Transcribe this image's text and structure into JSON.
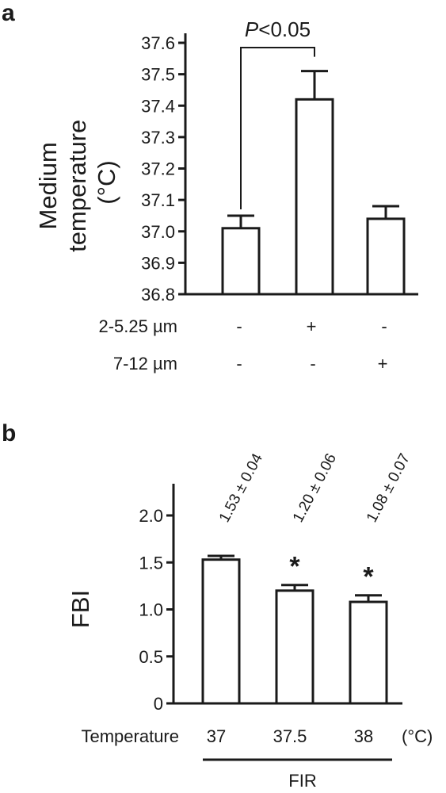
{
  "chart_data": [
    {
      "panel": "a",
      "type": "bar",
      "ylabel_lines": [
        "Medium",
        "temperature",
        "(°C)"
      ],
      "ylim": [
        36.8,
        37.6
      ],
      "yticks": [
        "36.8",
        "36.9",
        "37.0",
        "37.1",
        "37.2",
        "37.3",
        "37.4",
        "37.5",
        "37.6"
      ],
      "ytick_values": [
        36.8,
        36.9,
        37.0,
        37.1,
        37.2,
        37.3,
        37.4,
        37.5,
        37.6
      ],
      "values": [
        37.01,
        37.42,
        37.04
      ],
      "errors": [
        0.04,
        0.09,
        0.04
      ],
      "conditions": [
        {
          "label": "2-5.25 µm",
          "marks": [
            "-",
            "+",
            "-"
          ]
        },
        {
          "label": "7-12 µm",
          "marks": [
            "-",
            "-",
            "+"
          ]
        }
      ],
      "significance": {
        "italic": "P",
        "rest": "<0.05",
        "from_bar": 0,
        "to_bar": 1
      }
    },
    {
      "panel": "b",
      "type": "bar",
      "ylabel": "FBI",
      "ylim": [
        0,
        2.0
      ],
      "yticks": [
        "0",
        "0.5",
        "1.0",
        "1.5",
        "2.0"
      ],
      "ytick_values": [
        0,
        0.5,
        1.0,
        1.5,
        2.0
      ],
      "values": [
        1.53,
        1.2,
        1.08
      ],
      "errors": [
        0.04,
        0.06,
        0.07
      ],
      "value_labels": [
        "1.53 ± 0.04",
        "1.20 ± 0.06",
        "1.08 ± 0.07"
      ],
      "stars": [
        "",
        "*",
        "*"
      ],
      "xlabel": "Temperature",
      "categories": [
        "37",
        "37.5",
        "38"
      ],
      "unit": "(°C)",
      "group_label": "FIR"
    }
  ]
}
